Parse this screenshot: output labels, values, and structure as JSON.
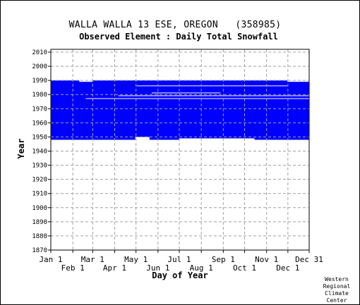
{
  "chart_data": {
    "type": "heatmap",
    "title": "WALLA WALLA 13 ESE, OREGON   (358985)",
    "subtitle": "Observed Element : Daily Total Snowfall",
    "xlabel": "Day of Year",
    "ylabel": "Year",
    "y_ticks": [
      1870,
      1880,
      1890,
      1900,
      1910,
      1920,
      1930,
      1940,
      1950,
      1960,
      1970,
      1980,
      1990,
      2000,
      2010
    ],
    "ylim": [
      1870,
      2012
    ],
    "xlim": [
      1,
      365
    ],
    "x_ticks_upper": [
      {
        "label": "Jan 1",
        "day": 1
      },
      {
        "label": "Mar 1",
        "day": 60
      },
      {
        "label": "May 1",
        "day": 121
      },
      {
        "label": "Jul 1",
        "day": 182
      },
      {
        "label": "Sep 1",
        "day": 244
      },
      {
        "label": "Nov 1",
        "day": 305
      },
      {
        "label": "Dec 31",
        "day": 365
      }
    ],
    "x_ticks_lower": [
      {
        "label": "Feb 1",
        "day": 32
      },
      {
        "label": "Apr 1",
        "day": 91
      },
      {
        "label": "Jun 1",
        "day": 152
      },
      {
        "label": "Aug 1",
        "day": 213
      },
      {
        "label": "Oct 1",
        "day": 274
      },
      {
        "label": "Dec 1",
        "day": 335
      }
    ],
    "grid": true,
    "data_color": "#0000ff",
    "data_coverage": {
      "year_start": 1948,
      "year_end": 1990,
      "day_start": 1,
      "day_end": 365,
      "note_gaps": [
        {
          "year_from": 1986,
          "year_to": 1986.4,
          "day_from": 122,
          "day_to": 334
        },
        {
          "year_from": 1981,
          "year_to": 1981.4,
          "day_from": 143,
          "day_to": 240
        },
        {
          "year_from": 1979,
          "year_to": 1979.4,
          "day_from": 96,
          "day_to": 365
        },
        {
          "year_from": 1977,
          "year_to": 1977.4,
          "day_from": 50,
          "day_to": 365
        },
        {
          "year_from": 1989,
          "year_to": 1990,
          "day_from": 41,
          "day_to": 60
        },
        {
          "year_from": 1989,
          "year_to": 1990,
          "day_from": 334,
          "day_to": 365
        },
        {
          "year_from": 1948,
          "year_to": 1949,
          "day_from": 182,
          "day_to": 288
        },
        {
          "year_from": 1948,
          "year_to": 1950,
          "day_from": 120,
          "day_to": 140
        }
      ]
    }
  },
  "credit": [
    "Western",
    "Regional",
    "Climate",
    "Center"
  ]
}
